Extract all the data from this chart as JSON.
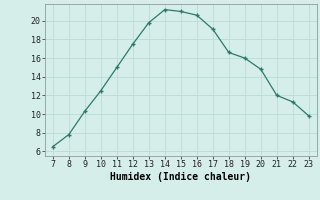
{
  "x": [
    7,
    8,
    9,
    10,
    11,
    12,
    13,
    14,
    15,
    16,
    17,
    18,
    19,
    20,
    21,
    22,
    23
  ],
  "y": [
    6.5,
    7.8,
    10.3,
    12.5,
    15.0,
    17.5,
    19.8,
    21.2,
    21.0,
    20.6,
    19.1,
    16.6,
    16.0,
    14.8,
    12.0,
    11.3,
    9.8
  ],
  "line_color": "#2d7a6a",
  "marker": "+",
  "bg_color": "#d5eeea",
  "grid_color": "#b8ddd8",
  "xlabel": "Humidex (Indice chaleur)",
  "xlim": [
    6.5,
    23.5
  ],
  "ylim": [
    5.5,
    21.8
  ],
  "xticks": [
    7,
    8,
    9,
    10,
    11,
    12,
    13,
    14,
    15,
    16,
    17,
    18,
    19,
    20,
    21,
    22,
    23
  ],
  "yticks": [
    6,
    8,
    10,
    12,
    14,
    16,
    18,
    20
  ],
  "tick_fontsize": 6,
  "label_fontsize": 7
}
